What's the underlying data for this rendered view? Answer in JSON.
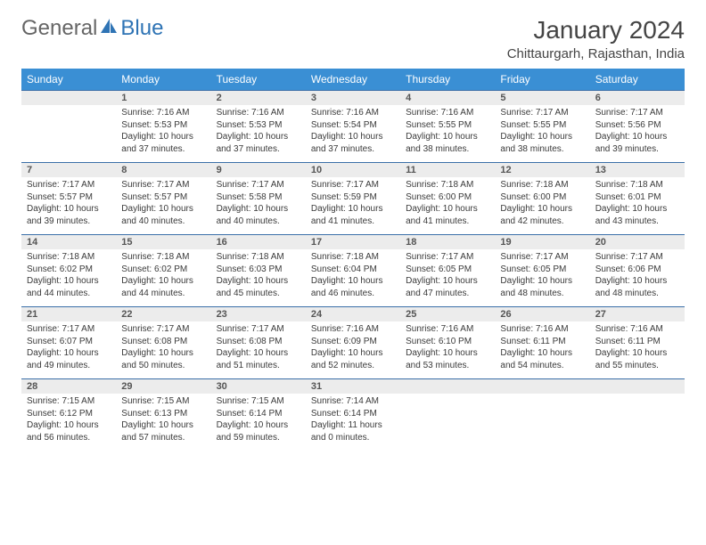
{
  "logo": {
    "word1": "General",
    "word2": "Blue",
    "icon_color": "#2f74b5"
  },
  "title": "January 2024",
  "location": "Chittaurgarh, Rajasthan, India",
  "colors": {
    "header_bg": "#3a8fd4",
    "header_text": "#ffffff",
    "num_row_bg": "#ececec",
    "row_border": "#3a6fa8",
    "text": "#3a3a3a"
  },
  "fonts": {
    "title_size": 28,
    "location_size": 15,
    "dayhead_size": 12,
    "daynum_size": 11,
    "cell_size": 10
  },
  "day_names": [
    "Sunday",
    "Monday",
    "Tuesday",
    "Wednesday",
    "Thursday",
    "Friday",
    "Saturday"
  ],
  "weeks": [
    {
      "nums": [
        "",
        "1",
        "2",
        "3",
        "4",
        "5",
        "6"
      ],
      "cells": [
        {
          "sunrise": "",
          "sunset": "",
          "daylight": ""
        },
        {
          "sunrise": "Sunrise: 7:16 AM",
          "sunset": "Sunset: 5:53 PM",
          "daylight": "Daylight: 10 hours and 37 minutes."
        },
        {
          "sunrise": "Sunrise: 7:16 AM",
          "sunset": "Sunset: 5:53 PM",
          "daylight": "Daylight: 10 hours and 37 minutes."
        },
        {
          "sunrise": "Sunrise: 7:16 AM",
          "sunset": "Sunset: 5:54 PM",
          "daylight": "Daylight: 10 hours and 37 minutes."
        },
        {
          "sunrise": "Sunrise: 7:16 AM",
          "sunset": "Sunset: 5:55 PM",
          "daylight": "Daylight: 10 hours and 38 minutes."
        },
        {
          "sunrise": "Sunrise: 7:17 AM",
          "sunset": "Sunset: 5:55 PM",
          "daylight": "Daylight: 10 hours and 38 minutes."
        },
        {
          "sunrise": "Sunrise: 7:17 AM",
          "sunset": "Sunset: 5:56 PM",
          "daylight": "Daylight: 10 hours and 39 minutes."
        }
      ]
    },
    {
      "nums": [
        "7",
        "8",
        "9",
        "10",
        "11",
        "12",
        "13"
      ],
      "cells": [
        {
          "sunrise": "Sunrise: 7:17 AM",
          "sunset": "Sunset: 5:57 PM",
          "daylight": "Daylight: 10 hours and 39 minutes."
        },
        {
          "sunrise": "Sunrise: 7:17 AM",
          "sunset": "Sunset: 5:57 PM",
          "daylight": "Daylight: 10 hours and 40 minutes."
        },
        {
          "sunrise": "Sunrise: 7:17 AM",
          "sunset": "Sunset: 5:58 PM",
          "daylight": "Daylight: 10 hours and 40 minutes."
        },
        {
          "sunrise": "Sunrise: 7:17 AM",
          "sunset": "Sunset: 5:59 PM",
          "daylight": "Daylight: 10 hours and 41 minutes."
        },
        {
          "sunrise": "Sunrise: 7:18 AM",
          "sunset": "Sunset: 6:00 PM",
          "daylight": "Daylight: 10 hours and 41 minutes."
        },
        {
          "sunrise": "Sunrise: 7:18 AM",
          "sunset": "Sunset: 6:00 PM",
          "daylight": "Daylight: 10 hours and 42 minutes."
        },
        {
          "sunrise": "Sunrise: 7:18 AM",
          "sunset": "Sunset: 6:01 PM",
          "daylight": "Daylight: 10 hours and 43 minutes."
        }
      ]
    },
    {
      "nums": [
        "14",
        "15",
        "16",
        "17",
        "18",
        "19",
        "20"
      ],
      "cells": [
        {
          "sunrise": "Sunrise: 7:18 AM",
          "sunset": "Sunset: 6:02 PM",
          "daylight": "Daylight: 10 hours and 44 minutes."
        },
        {
          "sunrise": "Sunrise: 7:18 AM",
          "sunset": "Sunset: 6:02 PM",
          "daylight": "Daylight: 10 hours and 44 minutes."
        },
        {
          "sunrise": "Sunrise: 7:18 AM",
          "sunset": "Sunset: 6:03 PM",
          "daylight": "Daylight: 10 hours and 45 minutes."
        },
        {
          "sunrise": "Sunrise: 7:18 AM",
          "sunset": "Sunset: 6:04 PM",
          "daylight": "Daylight: 10 hours and 46 minutes."
        },
        {
          "sunrise": "Sunrise: 7:17 AM",
          "sunset": "Sunset: 6:05 PM",
          "daylight": "Daylight: 10 hours and 47 minutes."
        },
        {
          "sunrise": "Sunrise: 7:17 AM",
          "sunset": "Sunset: 6:05 PM",
          "daylight": "Daylight: 10 hours and 48 minutes."
        },
        {
          "sunrise": "Sunrise: 7:17 AM",
          "sunset": "Sunset: 6:06 PM",
          "daylight": "Daylight: 10 hours and 48 minutes."
        }
      ]
    },
    {
      "nums": [
        "21",
        "22",
        "23",
        "24",
        "25",
        "26",
        "27"
      ],
      "cells": [
        {
          "sunrise": "Sunrise: 7:17 AM",
          "sunset": "Sunset: 6:07 PM",
          "daylight": "Daylight: 10 hours and 49 minutes."
        },
        {
          "sunrise": "Sunrise: 7:17 AM",
          "sunset": "Sunset: 6:08 PM",
          "daylight": "Daylight: 10 hours and 50 minutes."
        },
        {
          "sunrise": "Sunrise: 7:17 AM",
          "sunset": "Sunset: 6:08 PM",
          "daylight": "Daylight: 10 hours and 51 minutes."
        },
        {
          "sunrise": "Sunrise: 7:16 AM",
          "sunset": "Sunset: 6:09 PM",
          "daylight": "Daylight: 10 hours and 52 minutes."
        },
        {
          "sunrise": "Sunrise: 7:16 AM",
          "sunset": "Sunset: 6:10 PM",
          "daylight": "Daylight: 10 hours and 53 minutes."
        },
        {
          "sunrise": "Sunrise: 7:16 AM",
          "sunset": "Sunset: 6:11 PM",
          "daylight": "Daylight: 10 hours and 54 minutes."
        },
        {
          "sunrise": "Sunrise: 7:16 AM",
          "sunset": "Sunset: 6:11 PM",
          "daylight": "Daylight: 10 hours and 55 minutes."
        }
      ]
    },
    {
      "nums": [
        "28",
        "29",
        "30",
        "31",
        "",
        "",
        ""
      ],
      "cells": [
        {
          "sunrise": "Sunrise: 7:15 AM",
          "sunset": "Sunset: 6:12 PM",
          "daylight": "Daylight: 10 hours and 56 minutes."
        },
        {
          "sunrise": "Sunrise: 7:15 AM",
          "sunset": "Sunset: 6:13 PM",
          "daylight": "Daylight: 10 hours and 57 minutes."
        },
        {
          "sunrise": "Sunrise: 7:15 AM",
          "sunset": "Sunset: 6:14 PM",
          "daylight": "Daylight: 10 hours and 59 minutes."
        },
        {
          "sunrise": "Sunrise: 7:14 AM",
          "sunset": "Sunset: 6:14 PM",
          "daylight": "Daylight: 11 hours and 0 minutes."
        },
        {
          "sunrise": "",
          "sunset": "",
          "daylight": ""
        },
        {
          "sunrise": "",
          "sunset": "",
          "daylight": ""
        },
        {
          "sunrise": "",
          "sunset": "",
          "daylight": ""
        }
      ]
    }
  ]
}
